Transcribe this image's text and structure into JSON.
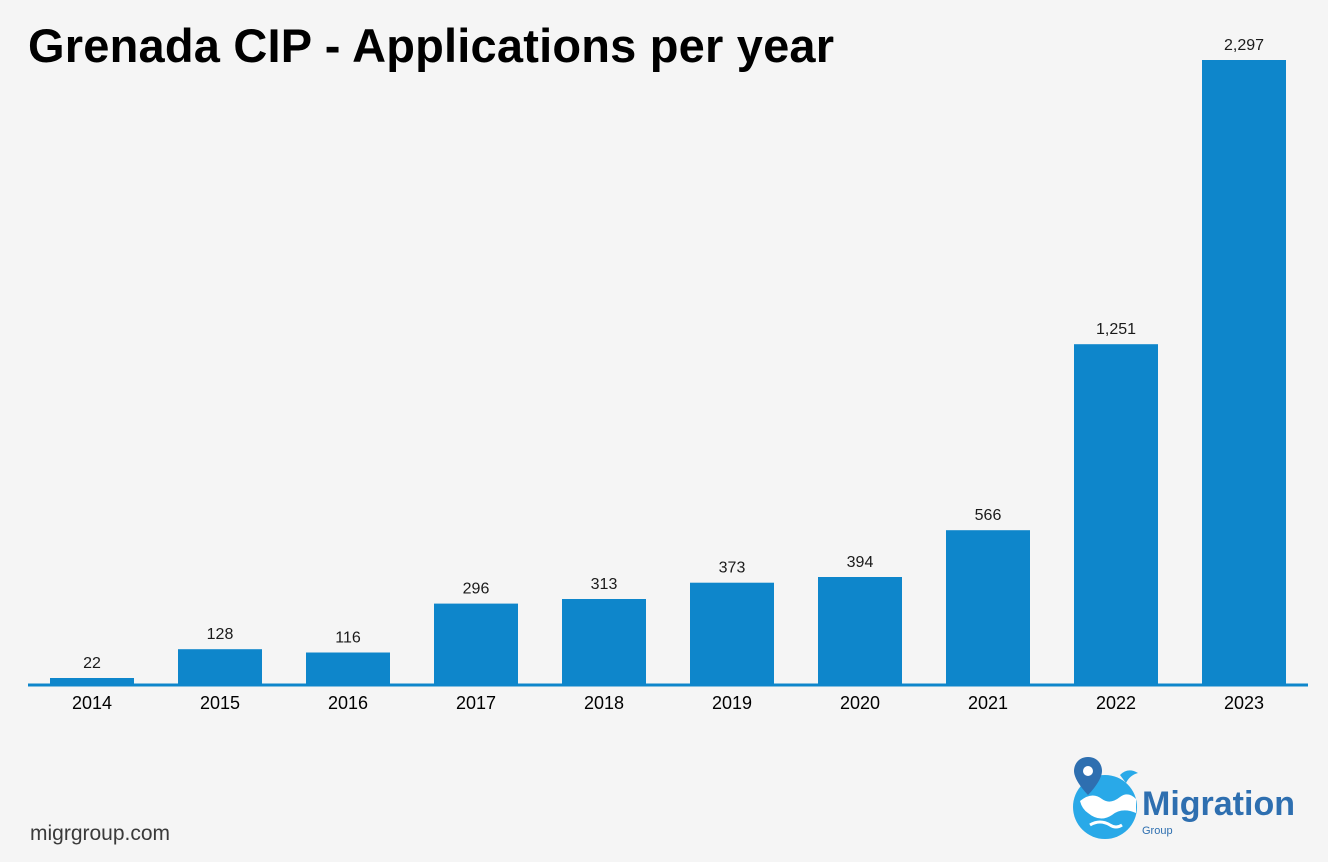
{
  "header": {
    "title": "Grenada CIP - Applications per year"
  },
  "footer": {
    "source": "migrgroup.com",
    "logo_word": "Migration",
    "logo_sub": "Group",
    "logo_icon": "globe-pin-icon"
  },
  "colors": {
    "bar": "#0e86cb",
    "axis": "#0e86cb",
    "background": "#f5f5f5",
    "logo": "#2e6fb0"
  },
  "chart_data": {
    "type": "bar",
    "title": "Grenada CIP - Applications per year",
    "categories": [
      "2014",
      "2015",
      "2016",
      "2017",
      "2018",
      "2019",
      "2020",
      "2021",
      "2022",
      "2023"
    ],
    "values": [
      22,
      128,
      116,
      296,
      313,
      373,
      394,
      566,
      1251,
      2297
    ],
    "value_labels": [
      "22",
      "128",
      "116",
      "296",
      "313",
      "373",
      "394",
      "566",
      "1,251",
      "2,297"
    ],
    "xlabel": "",
    "ylabel": "",
    "ylim": [
      0,
      2297
    ],
    "grid": false,
    "legend": "none",
    "data_labels": true
  }
}
